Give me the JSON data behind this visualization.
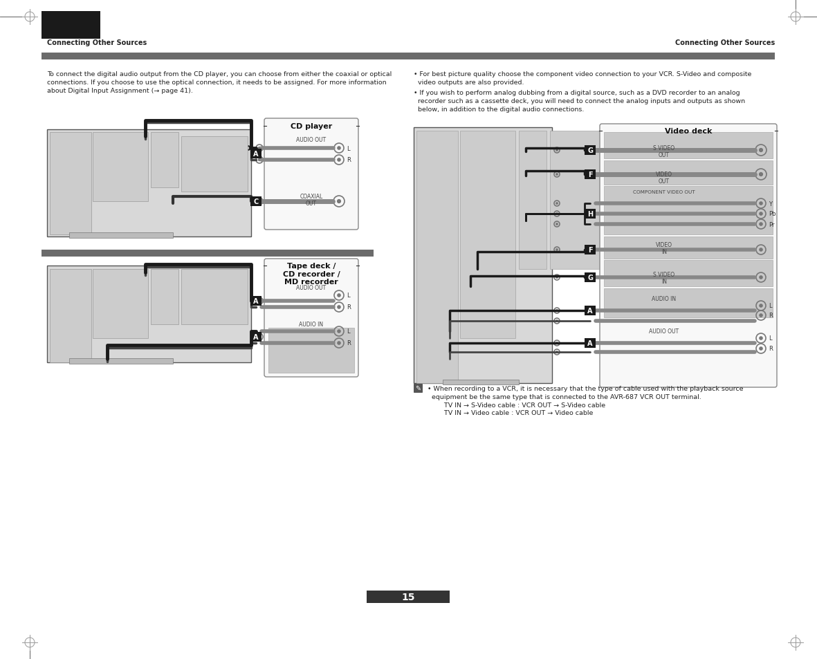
{
  "page_bg": "#ffffff",
  "header_bar_color": "#6b6b6b",
  "header_text_left": "Connecting Other Sources",
  "header_text_right": "Connecting Other Sources",
  "page_number": "15",
  "left_body_text": "To connect the digital audio output from the CD player, you can choose from either the coaxial or optical\nconnections. If you choose to use the optical connection, it needs to be assigned. For more information\nabout Digital Input Assignment (→ page 41).",
  "right_body_text1": "• For best picture quality choose the component video connection to your VCR. S-Video and composite\n  video outputs are also provided.",
  "right_body_text2": "• If you wish to perform analog dubbing from a digital source, such as a DVD recorder to an analog\n  recorder such as a cassette deck, you will need to connect the analog inputs and outputs as shown\n  below, in addition to the digital audio connections.",
  "cd_player_label": "CD player",
  "audio_out_label": "AUDIO OUT",
  "coaxial_out_label": "COAXIAL\nOUT",
  "tape_label": "Tape deck /\nCD recorder /\nMD recorder",
  "audio_out_tape": "AUDIO OUT",
  "audio_in_tape": "AUDIO IN",
  "video_deck_label": "Video deck",
  "s_video_out_label": "S VIDEO\nOUT",
  "video_out_label": "VIDEO\nOUT",
  "component_video_out_label": "COMPONENT VIDEO OUT",
  "video_in_label": "VIDEO\nIN",
  "s_video_in_label": "S VIDEO\nIN",
  "audio_in_vd_label": "AUDIO IN",
  "audio_out_vd_label": "AUDIO OUT",
  "note_text": "• When recording to a VCR, it is necessary that the type of cable used with the playback source\n  equipment be the same type that is connected to the AVR-687 VCR OUT terminal.\n        TV IN → S-Video cable : VCR OUT → S-Video cable\n        TV IN → Video cable : VCR OUT → Video cable",
  "black_rect_color": "#1a1a1a",
  "crosshair_color": "#999999",
  "label_box_color": "#1a1a1a",
  "device_face_color": "#e0e0e0",
  "device_edge_color": "#888888",
  "panel_color": "#f5f5f5",
  "shaded_section_color": "#c8c8c8",
  "wire_color": "#222222",
  "rca_color": "#777777",
  "text_color": "#222222",
  "note_icon_color": "#555555"
}
